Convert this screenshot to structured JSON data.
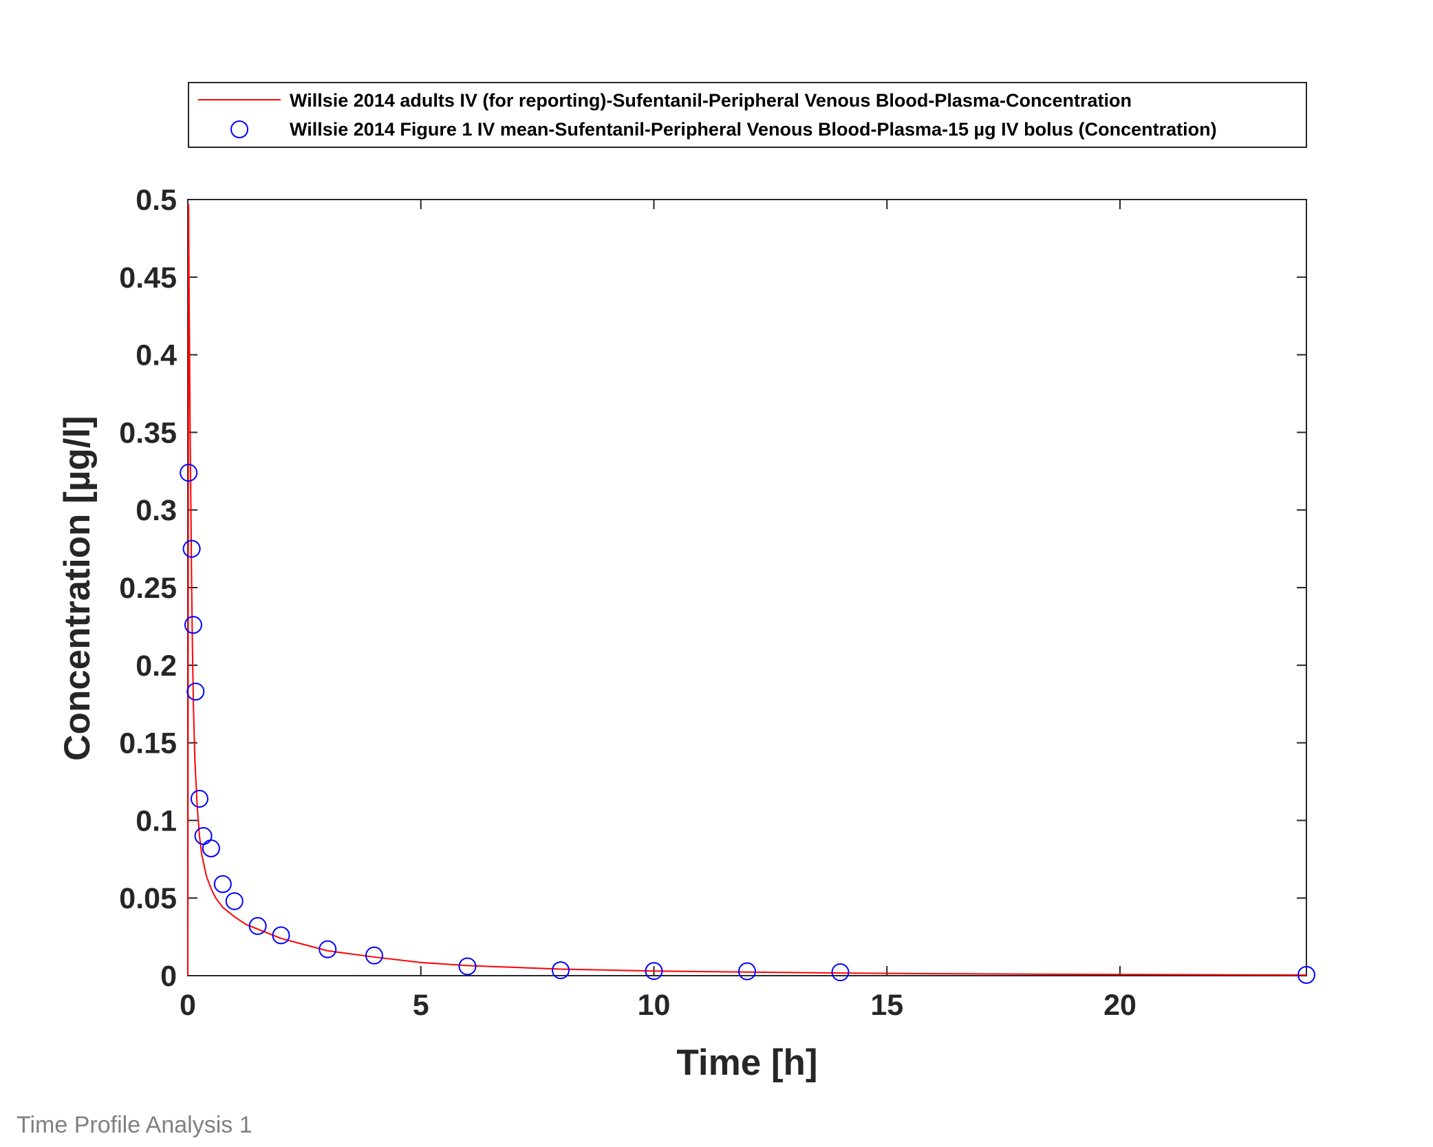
{
  "footer_text": "Time Profile Analysis 1",
  "chart_data": {
    "type": "line",
    "title": "",
    "xlabel": "Time [h]",
    "ylabel": "Concentration [µg/l]",
    "xlim": [
      0,
      24
    ],
    "ylim": [
      0,
      0.5
    ],
    "xticks": [
      0,
      5,
      10,
      15,
      20
    ],
    "xtick_labels": [
      "0",
      "5",
      "10",
      "15",
      "20"
    ],
    "yticks": [
      0,
      0.05,
      0.1,
      0.15,
      0.2,
      0.25,
      0.3,
      0.35,
      0.4,
      0.45,
      0.5
    ],
    "ytick_labels": [
      "0",
      "0.05",
      "0.1",
      "0.15",
      "0.2",
      "0.25",
      "0.3",
      "0.35",
      "0.4",
      "0.45",
      "0.5"
    ],
    "grid": false,
    "legend_position": "top-outside",
    "series": [
      {
        "name": "Willsie 2014 adults IV (for reporting)-Sufentanil-Peripheral Venous Blood-Plasma-Concentration",
        "kind": "line",
        "color": "#ff0000",
        "x": [
          0,
          0.0167,
          0.03,
          0.05,
          0.067,
          0.083,
          0.1,
          0.12,
          0.15,
          0.2,
          0.25,
          0.3,
          0.4,
          0.5,
          0.6,
          0.75,
          1,
          1.25,
          1.5,
          2,
          2.5,
          3,
          4,
          5,
          6,
          8,
          10,
          12,
          14,
          16,
          18,
          20,
          22,
          24
        ],
        "y": [
          0,
          0.497,
          0.43,
          0.35,
          0.3,
          0.25,
          0.21,
          0.175,
          0.14,
          0.11,
          0.09,
          0.078,
          0.064,
          0.056,
          0.05,
          0.044,
          0.038,
          0.033,
          0.03,
          0.024,
          0.02,
          0.016,
          0.012,
          0.0085,
          0.0065,
          0.0042,
          0.003,
          0.0023,
          0.0017,
          0.0013,
          0.001,
          0.0008,
          0.0006,
          0.0004
        ]
      },
      {
        "name": "Willsie 2014 Figure 1 IV mean-Sufentanil-Peripheral Venous Blood-Plasma-15 µg IV bolus (Concentration)",
        "kind": "scatter",
        "marker": "circle-open",
        "color": "#0000ff",
        "x": [
          0.0167,
          0.083,
          0.117,
          0.167,
          0.25,
          0.333,
          0.5,
          0.75,
          1,
          1.5,
          2,
          3,
          4,
          6,
          8,
          10,
          12,
          14,
          24
        ],
        "y": [
          0.324,
          0.275,
          0.226,
          0.183,
          0.114,
          0.09,
          0.082,
          0.059,
          0.048,
          0.032,
          0.026,
          0.017,
          0.013,
          0.006,
          0.0035,
          0.003,
          0.0028,
          0.0022,
          0.0005
        ]
      }
    ]
  }
}
